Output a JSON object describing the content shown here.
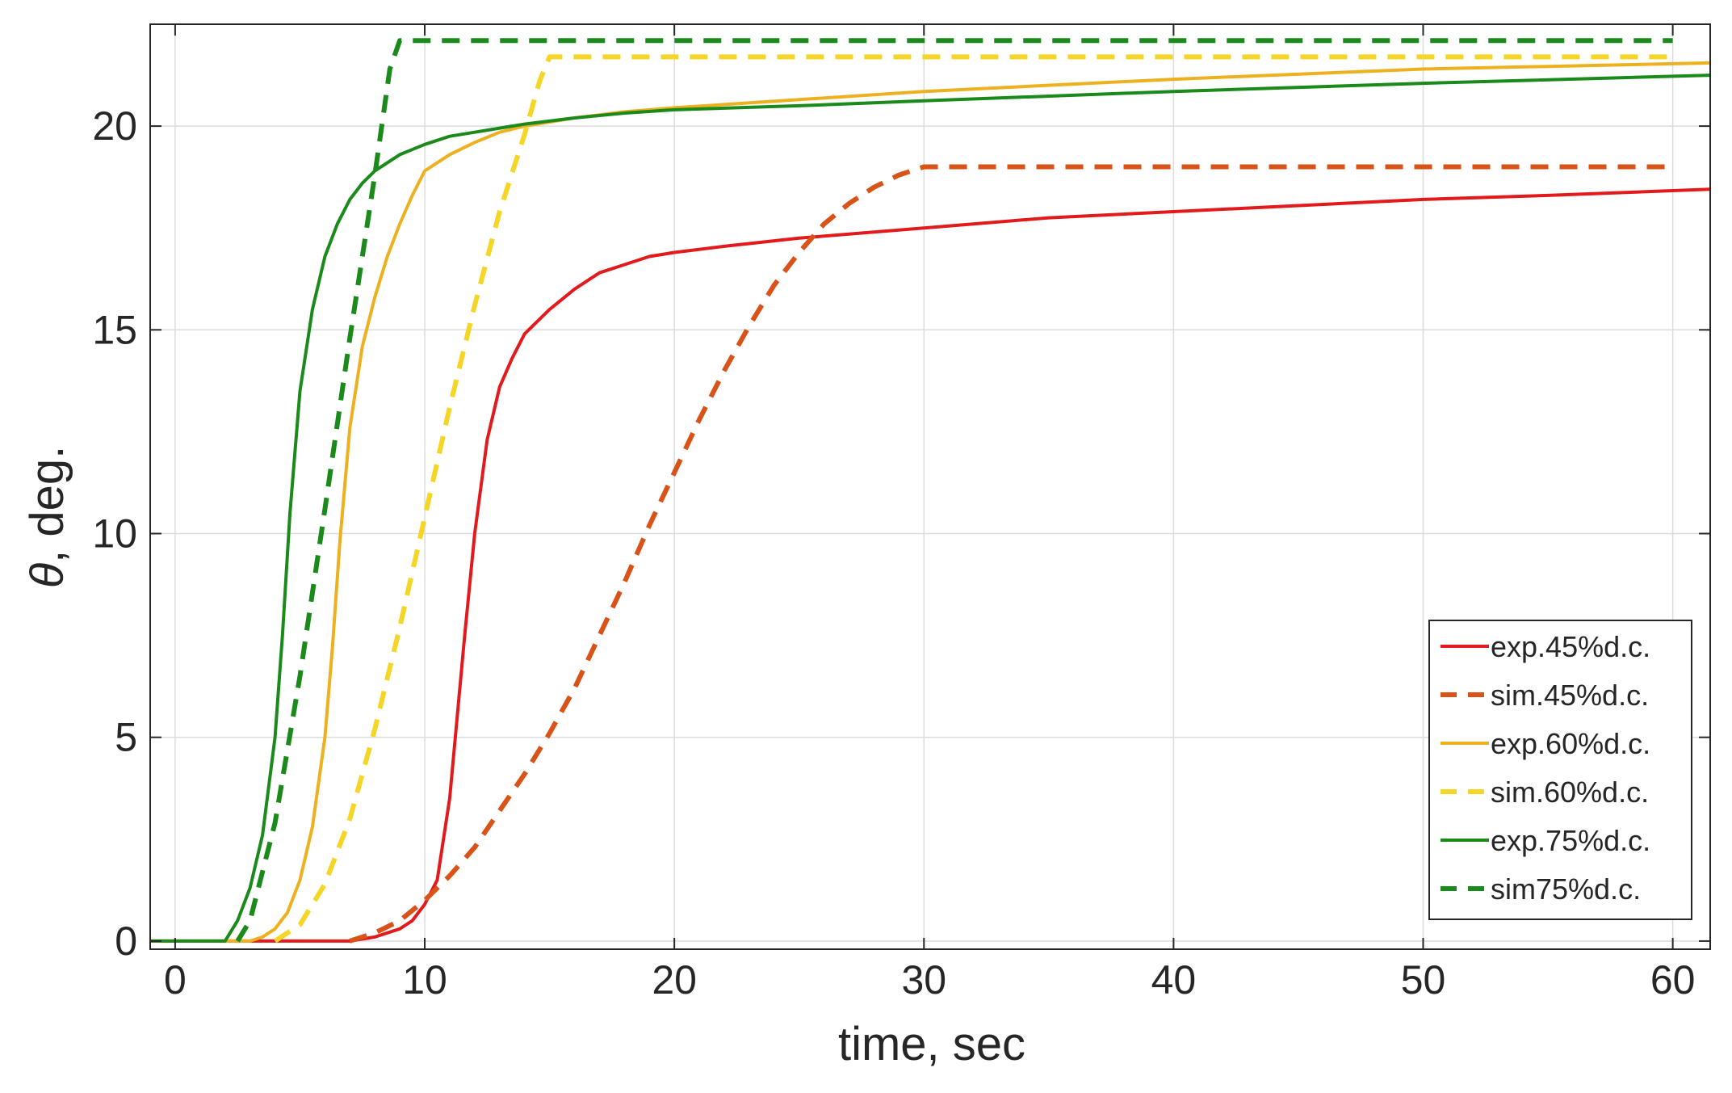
{
  "chart_data": {
    "type": "line",
    "title": "",
    "xlabel": "time, sec",
    "ylabel_symbol": "θ",
    "ylabel_rest": ", deg.",
    "xlim": [
      -1,
      61.5
    ],
    "ylim": [
      -0.2,
      22.5
    ],
    "xticks": [
      0,
      10,
      20,
      30,
      40,
      50,
      60
    ],
    "yticks": [
      0,
      5,
      10,
      15,
      20
    ],
    "grid": true,
    "legend_position": "bottom-right",
    "colors": {
      "exp45": "#e31a1c",
      "sim45": "#d95319",
      "exp60": "#edb120",
      "sim60": "#f5d525",
      "exp75": "#1a8a1a",
      "sim75": "#1a8a1a"
    },
    "series": [
      {
        "name": "exp.45%d.c.",
        "style": "solid",
        "color": "#e31a1c",
        "x": [
          -1,
          2,
          4,
          6,
          7,
          8,
          9,
          9.5,
          10,
          10.5,
          11,
          11.3,
          11.6,
          12,
          12.5,
          13,
          13.5,
          14,
          14.5,
          15,
          16,
          17,
          18,
          19,
          20,
          22,
          25,
          30,
          35,
          40,
          45,
          50,
          55,
          61.5
        ],
        "y": [
          0,
          0,
          0,
          0,
          0,
          0.1,
          0.3,
          0.5,
          0.9,
          1.5,
          3.5,
          5.5,
          7.5,
          10,
          12.3,
          13.6,
          14.3,
          14.9,
          15.2,
          15.5,
          16.0,
          16.4,
          16.6,
          16.8,
          16.9,
          17.05,
          17.25,
          17.5,
          17.75,
          17.9,
          18.05,
          18.2,
          18.3,
          18.45
        ]
      },
      {
        "name": "sim.45%d.c.",
        "style": "dashed",
        "color": "#d95319",
        "x": [
          7,
          8,
          9,
          10,
          11,
          12,
          13,
          14,
          15,
          16,
          17,
          18,
          19,
          20,
          21,
          22,
          23,
          24,
          25,
          26,
          27,
          28,
          29,
          30,
          31,
          60
        ],
        "y": [
          0,
          0.2,
          0.5,
          1.0,
          1.6,
          2.3,
          3.2,
          4.1,
          5.1,
          6.2,
          7.5,
          8.8,
          10.2,
          11.5,
          12.8,
          14.0,
          15.1,
          16.1,
          16.9,
          17.6,
          18.1,
          18.5,
          18.8,
          19.0,
          19.0,
          19.0
        ]
      },
      {
        "name": "exp.60%d.c.",
        "style": "solid",
        "color": "#edb120",
        "x": [
          -1,
          3,
          3.5,
          4,
          4.5,
          5,
          5.5,
          6,
          6.3,
          6.6,
          7,
          7.5,
          8,
          8.5,
          9,
          9.5,
          10,
          11,
          12,
          13,
          14,
          16,
          18,
          20,
          25,
          30,
          40,
          50,
          61.5
        ],
        "y": [
          0,
          0,
          0.1,
          0.3,
          0.7,
          1.5,
          2.8,
          5.0,
          7.2,
          9.8,
          12.6,
          14.6,
          15.8,
          16.8,
          17.6,
          18.3,
          18.9,
          19.3,
          19.6,
          19.85,
          20.0,
          20.2,
          20.35,
          20.45,
          20.65,
          20.85,
          21.15,
          21.4,
          21.55
        ]
      },
      {
        "name": "sim.60%d.c.",
        "style": "dashed",
        "color": "#f5d525",
        "x": [
          4,
          5,
          6,
          7,
          8,
          9,
          10,
          11,
          12,
          13,
          14,
          14.6,
          15,
          60
        ],
        "y": [
          0,
          0.4,
          1.4,
          3.0,
          5.2,
          7.7,
          10.4,
          13.1,
          15.6,
          17.9,
          19.8,
          21.1,
          21.7,
          21.7
        ]
      },
      {
        "name": "exp.75%d.c.",
        "style": "solid",
        "color": "#1a8a1a",
        "x": [
          -1,
          2,
          2.5,
          3,
          3.5,
          4,
          4.3,
          4.6,
          5,
          5.5,
          6,
          6.5,
          7,
          7.5,
          8,
          9,
          10,
          11,
          12,
          13,
          14,
          16,
          18,
          20,
          25,
          30,
          40,
          50,
          61.5
        ],
        "y": [
          0,
          0,
          0.5,
          1.3,
          2.6,
          5.0,
          7.5,
          10.5,
          13.5,
          15.5,
          16.8,
          17.6,
          18.2,
          18.6,
          18.9,
          19.3,
          19.55,
          19.75,
          19.85,
          19.95,
          20.05,
          20.2,
          20.32,
          20.4,
          20.5,
          20.62,
          20.85,
          21.05,
          21.25
        ]
      },
      {
        "name": "sim75%d.c.",
        "style": "dashed",
        "color": "#1a8a1a",
        "x": [
          2.5,
          3,
          4,
          5,
          6,
          7,
          8,
          8.6,
          9,
          9.3,
          60
        ],
        "y": [
          0,
          0.5,
          2.9,
          6.5,
          10.6,
          14.8,
          18.8,
          21.4,
          22.1,
          22.1,
          22.1
        ]
      }
    ]
  }
}
